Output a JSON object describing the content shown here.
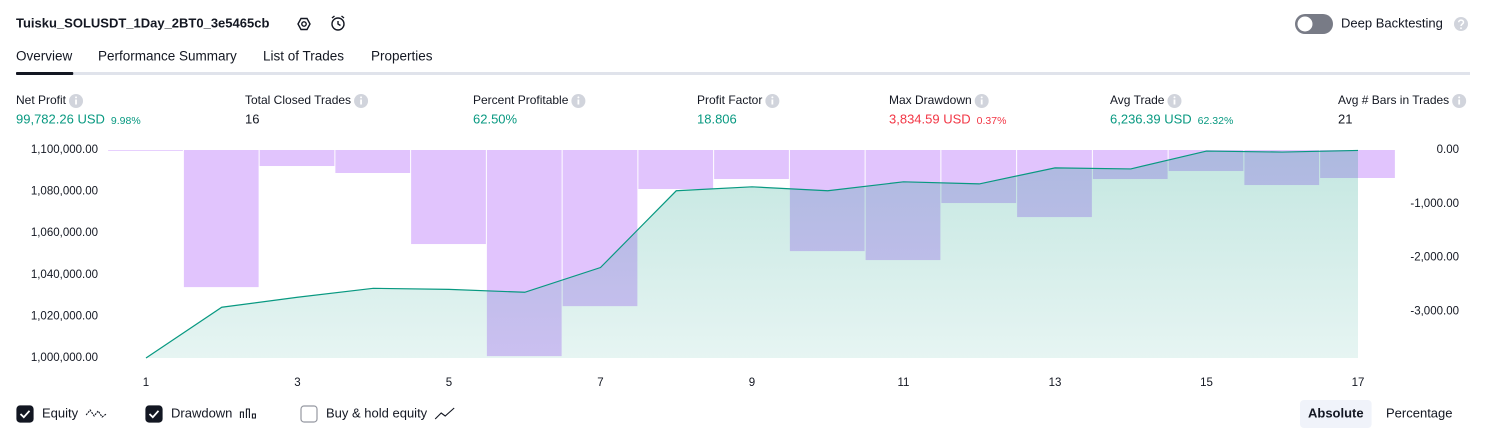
{
  "header": {
    "title": "Tuisku_SOLUSDT_1Day_2BT0_3e5465cb",
    "deep_backtesting": {
      "label": "Deep Backtesting",
      "on": false
    }
  },
  "tabs": {
    "items": [
      "Overview",
      "Performance Summary",
      "List of Trades",
      "Properties"
    ],
    "active": 0
  },
  "metrics": [
    {
      "label": "Net Profit",
      "value": "99,782.26 USD",
      "percent": "9.98%",
      "color": "#089981"
    },
    {
      "label": "Total Closed Trades",
      "value": "16",
      "color": "#131722"
    },
    {
      "label": "Percent Profitable",
      "value": "62.50%",
      "color": "#089981"
    },
    {
      "label": "Profit Factor",
      "value": "18.806",
      "color": "#089981"
    },
    {
      "label": "Max Drawdown",
      "value": "3,834.59 USD",
      "percent": "0.37%",
      "color": "#f23645"
    },
    {
      "label": "Avg Trade",
      "value": "6,236.39 USD",
      "percent": "62.32%",
      "color": "#089981"
    },
    {
      "label": "Avg # Bars in Trades",
      "value": "21",
      "color": "#131722"
    }
  ],
  "chart_data": {
    "type": "combo",
    "x": [
      1,
      2,
      3,
      4,
      5,
      6,
      7,
      8,
      9,
      10,
      11,
      12,
      13,
      14,
      15,
      16,
      17
    ],
    "xlim": [
      1,
      17
    ],
    "xticks": [
      1,
      3,
      5,
      7,
      9,
      11,
      13,
      15,
      17
    ],
    "ylim": [
      1000000,
      1100000
    ],
    "yticks": [
      {
        "value": 1000000,
        "label": "1,000,000.00"
      },
      {
        "value": 1020000,
        "label": "1,020,000.00"
      },
      {
        "value": 1040000,
        "label": "1,040,000.00"
      },
      {
        "value": 1060000,
        "label": "1,060,000.00"
      },
      {
        "value": 1080000,
        "label": "1,080,000.00"
      },
      {
        "value": 1100000,
        "label": "1,100,000.00"
      }
    ],
    "y2lim": [
      -3870,
      0
    ],
    "y2ticks": [
      {
        "value": 0,
        "label": "0.00"
      },
      {
        "value": -1000,
        "label": "-1,000.00"
      },
      {
        "value": -2000,
        "label": "-2,000.00"
      },
      {
        "value": -3000,
        "label": "-3,000.00"
      }
    ],
    "series": [
      {
        "name": "Equity",
        "type": "area",
        "color": "#089981",
        "visible": true,
        "values": [
          1000000,
          1024400,
          1029200,
          1033500,
          1033000,
          1031600,
          1043500,
          1080400,
          1082300,
          1080400,
          1084700,
          1083700,
          1091400,
          1090900,
          1099500,
          1099000,
          1099782
        ]
      },
      {
        "name": "Drawdown",
        "type": "bar",
        "axis": "y2",
        "color": "#e1c4fd",
        "visible": true,
        "values": [
          -10,
          -2551,
          -298,
          -428,
          -1750,
          -3835,
          -2905,
          -726,
          -540,
          -1881,
          -2048,
          -987,
          -1248,
          -540,
          -391,
          -652,
          -521
        ]
      }
    ],
    "extra_toggle": {
      "name": "Buy & hold equity",
      "visible": false
    }
  },
  "view_buttons": {
    "items": [
      "Absolute",
      "Percentage"
    ],
    "active": 0
  }
}
